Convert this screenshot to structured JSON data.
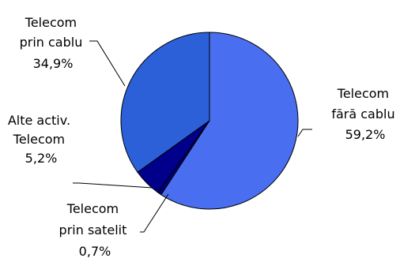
{
  "chart_data": {
    "type": "pie",
    "title": "",
    "slices": [
      {
        "label_lines": [
          "Telecom",
          "fără cablu"
        ],
        "value_text": "59,2%",
        "value": 59.2,
        "color": "#4A6EF0"
      },
      {
        "label_lines": [
          "Telecom",
          "prin satelit"
        ],
        "value_text": "0,7%",
        "value": 0.7,
        "color": "#000080"
      },
      {
        "label_lines": [
          "Alte activ.",
          "Telecom"
        ],
        "value_text": "5,2%",
        "value": 5.2,
        "color": "#00008B"
      },
      {
        "label_lines": [
          "Telecom",
          "prin cablu"
        ],
        "value_text": "34,9%",
        "value": 34.9,
        "color": "#2C60D8"
      }
    ],
    "start_angle_deg": 0,
    "direction": "clockwise",
    "legend": "none",
    "labels": "outside with leader lines"
  }
}
